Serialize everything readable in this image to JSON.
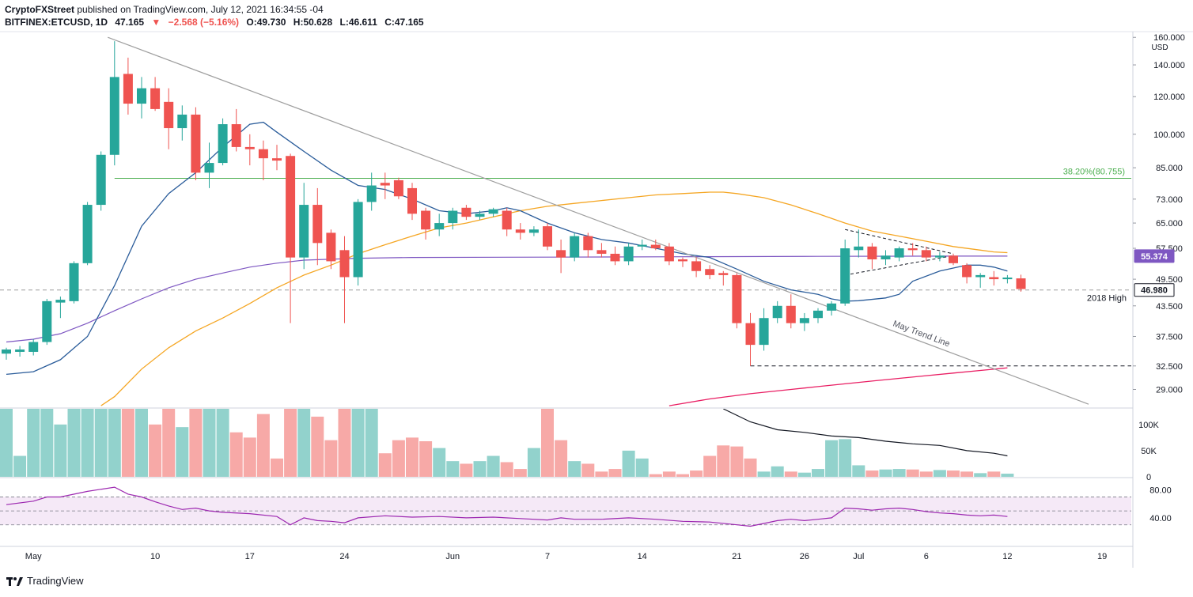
{
  "header": {
    "line1_author": "CryptoFXStreet",
    "line1_rest": "published on TradingView.com, July 12, 2021 16:34:55 -04",
    "symbol": "BITFINEX:ETCUSD, 1D",
    "last": "47.165",
    "arrow": "▼",
    "change": "−2.568 (−5.16%)",
    "o": "O:49.730",
    "h": "H:50.628",
    "l": "L:46.611",
    "c": "C:47.165"
  },
  "footer": {
    "brand": "TradingView"
  },
  "colors": {
    "up": "#26a69a",
    "down": "#ef5350",
    "ema_blue": "#2a5c9a",
    "ema_orange": "#f5a623",
    "ema_purple": "#7e57c2",
    "sma_pink": "#e91e63",
    "trend": "#9e9e9e",
    "fib": "#4caf50",
    "rsi": "#9c27b0"
  },
  "chart_data": {
    "type": "candlestick",
    "title": "BITFINEX:ETCUSD, 1D",
    "y_scale": "log",
    "ylim": [
      26.5,
      162
    ],
    "currency": "USD",
    "price_ticks": [
      29,
      32.5,
      37.5,
      43.5,
      49.5,
      57.5,
      65,
      73,
      85,
      100,
      120,
      140,
      160
    ],
    "x_tick_labels": [
      {
        "label": "May",
        "index": 2
      },
      {
        "label": "10",
        "index": 11
      },
      {
        "label": "17",
        "index": 18
      },
      {
        "label": "24",
        "index": 25
      },
      {
        "label": "Jun",
        "index": 33
      },
      {
        "label": "7",
        "index": 40
      },
      {
        "label": "14",
        "index": 47
      },
      {
        "label": "21",
        "index": 54
      },
      {
        "label": "26",
        "index": 59
      },
      {
        "label": "Jul",
        "index": 63
      },
      {
        "label": "6",
        "index": 68
      },
      {
        "label": "12",
        "index": 74
      },
      {
        "label": "19",
        "index": 81
      }
    ],
    "candles": [
      {
        "o": 34.5,
        "h": 35.5,
        "l": 33.5,
        "c": 35.2
      },
      {
        "o": 34.8,
        "h": 35.8,
        "l": 34.0,
        "c": 35.2
      },
      {
        "o": 34.8,
        "h": 37.0,
        "l": 34.2,
        "c": 36.5
      },
      {
        "o": 36.5,
        "h": 45.0,
        "l": 36.0,
        "c": 44.5
      },
      {
        "o": 44.2,
        "h": 45.5,
        "l": 41.0,
        "c": 44.8
      },
      {
        "o": 44.5,
        "h": 54.0,
        "l": 44.0,
        "c": 53.5
      },
      {
        "o": 53.5,
        "h": 72.0,
        "l": 53.0,
        "c": 71.0
      },
      {
        "o": 71.0,
        "h": 92.0,
        "l": 69.0,
        "c": 90.5
      },
      {
        "o": 90.5,
        "h": 157.0,
        "l": 86.0,
        "c": 132.0
      },
      {
        "o": 134.0,
        "h": 145.0,
        "l": 110.0,
        "c": 116.0
      },
      {
        "o": 116.0,
        "h": 132.0,
        "l": 108.0,
        "c": 125.0
      },
      {
        "o": 125.0,
        "h": 132.0,
        "l": 112.0,
        "c": 113.0
      },
      {
        "o": 117.0,
        "h": 125.0,
        "l": 93.0,
        "c": 103.0
      },
      {
        "o": 103.0,
        "h": 115.0,
        "l": 97.0,
        "c": 110.0
      },
      {
        "o": 110.0,
        "h": 114.0,
        "l": 80.0,
        "c": 83.0
      },
      {
        "o": 83.0,
        "h": 96.0,
        "l": 77.0,
        "c": 87.0
      },
      {
        "o": 87.0,
        "h": 108.0,
        "l": 86.0,
        "c": 105.0
      },
      {
        "o": 105.0,
        "h": 113.0,
        "l": 92.0,
        "c": 94.0
      },
      {
        "o": 94.0,
        "h": 100.0,
        "l": 86.0,
        "c": 93.0
      },
      {
        "o": 93.0,
        "h": 97.0,
        "l": 80.0,
        "c": 89.0
      },
      {
        "o": 89.0,
        "h": 95.0,
        "l": 84.0,
        "c": 88.0
      },
      {
        "o": 90.0,
        "h": 91.0,
        "l": 40.0,
        "c": 55.0
      },
      {
        "o": 55.0,
        "h": 79.0,
        "l": 52.0,
        "c": 71.0
      },
      {
        "o": 71.0,
        "h": 77.0,
        "l": 53.0,
        "c": 59.0
      },
      {
        "o": 62.0,
        "h": 63.0,
        "l": 52.0,
        "c": 54.0
      },
      {
        "o": 57.0,
        "h": 61.0,
        "l": 40.0,
        "c": 50.0
      },
      {
        "o": 50.0,
        "h": 73.0,
        "l": 48.0,
        "c": 72.0
      },
      {
        "o": 72.0,
        "h": 83.0,
        "l": 69.0,
        "c": 78.0
      },
      {
        "o": 79.0,
        "h": 83.0,
        "l": 73.0,
        "c": 78.0
      },
      {
        "o": 80.0,
        "h": 81.0,
        "l": 73.0,
        "c": 74.0
      },
      {
        "o": 77.0,
        "h": 79.0,
        "l": 66.0,
        "c": 68.0
      },
      {
        "o": 69.0,
        "h": 70.0,
        "l": 60.0,
        "c": 63.0
      },
      {
        "o": 63.0,
        "h": 68.0,
        "l": 61.0,
        "c": 65.0
      },
      {
        "o": 65.0,
        "h": 70.0,
        "l": 63.0,
        "c": 69.0
      },
      {
        "o": 70.0,
        "h": 71.0,
        "l": 66.0,
        "c": 67.0
      },
      {
        "o": 67.0,
        "h": 69.0,
        "l": 66.0,
        "c": 68.0
      },
      {
        "o": 68.0,
        "h": 70.0,
        "l": 67.0,
        "c": 69.5
      },
      {
        "o": 69.0,
        "h": 70.0,
        "l": 61.0,
        "c": 63.0
      },
      {
        "o": 63.0,
        "h": 65.0,
        "l": 60.0,
        "c": 62.0
      },
      {
        "o": 62.0,
        "h": 64.0,
        "l": 61.0,
        "c": 63.0
      },
      {
        "o": 64.0,
        "h": 65.0,
        "l": 57.0,
        "c": 58.0
      },
      {
        "o": 57.0,
        "h": 60.0,
        "l": 51.0,
        "c": 55.0
      },
      {
        "o": 55.0,
        "h": 62.0,
        "l": 54.0,
        "c": 61.0
      },
      {
        "o": 61.0,
        "h": 62.0,
        "l": 55.0,
        "c": 57.0
      },
      {
        "o": 57.0,
        "h": 59.0,
        "l": 55.0,
        "c": 56.0
      },
      {
        "o": 56.0,
        "h": 58.0,
        "l": 53.0,
        "c": 54.0
      },
      {
        "o": 54.0,
        "h": 59.0,
        "l": 53.0,
        "c": 58.0
      },
      {
        "o": 58.0,
        "h": 60.0,
        "l": 57.0,
        "c": 58.5
      },
      {
        "o": 58.5,
        "h": 60.0,
        "l": 57.0,
        "c": 57.5
      },
      {
        "o": 58.0,
        "h": 59.0,
        "l": 53.0,
        "c": 54.0
      },
      {
        "o": 54.5,
        "h": 55.0,
        "l": 52.5,
        "c": 54.0
      },
      {
        "o": 54.0,
        "h": 55.0,
        "l": 50.0,
        "c": 51.5
      },
      {
        "o": 52.0,
        "h": 53.0,
        "l": 49.5,
        "c": 50.5
      },
      {
        "o": 51.0,
        "h": 51.5,
        "l": 48.0,
        "c": 50.5
      },
      {
        "o": 50.5,
        "h": 51.0,
        "l": 39.0,
        "c": 40.0
      },
      {
        "o": 40.0,
        "h": 42.0,
        "l": 32.5,
        "c": 36.0
      },
      {
        "o": 36.0,
        "h": 43.0,
        "l": 35.0,
        "c": 41.0
      },
      {
        "o": 41.0,
        "h": 44.5,
        "l": 40.0,
        "c": 43.5
      },
      {
        "o": 43.5,
        "h": 46.0,
        "l": 39.0,
        "c": 40.0
      },
      {
        "o": 40.0,
        "h": 42.0,
        "l": 38.5,
        "c": 41.0
      },
      {
        "o": 41.0,
        "h": 43.0,
        "l": 40.0,
        "c": 42.5
      },
      {
        "o": 42.5,
        "h": 44.5,
        "l": 41.5,
        "c": 44.0
      },
      {
        "o": 44.0,
        "h": 60.0,
        "l": 43.5,
        "c": 57.5
      },
      {
        "o": 57.0,
        "h": 63.0,
        "l": 55.0,
        "c": 58.0
      },
      {
        "o": 58.0,
        "h": 59.0,
        "l": 52.0,
        "c": 54.5
      },
      {
        "o": 54.5,
        "h": 57.0,
        "l": 53.0,
        "c": 55.5
      },
      {
        "o": 55.0,
        "h": 58.0,
        "l": 54.0,
        "c": 57.5
      },
      {
        "o": 57.5,
        "h": 59.0,
        "l": 55.5,
        "c": 57.0
      },
      {
        "o": 57.0,
        "h": 58.0,
        "l": 54.0,
        "c": 55.0
      },
      {
        "o": 55.0,
        "h": 56.5,
        "l": 54.0,
        "c": 55.5
      },
      {
        "o": 55.5,
        "h": 56.0,
        "l": 53.0,
        "c": 53.5
      },
      {
        "o": 53.0,
        "h": 53.5,
        "l": 48.5,
        "c": 50.0
      },
      {
        "o": 50.0,
        "h": 51.0,
        "l": 47.5,
        "c": 50.5
      },
      {
        "o": 50.0,
        "h": 51.5,
        "l": 48.0,
        "c": 49.5
      },
      {
        "o": 49.5,
        "h": 50.5,
        "l": 48.5,
        "c": 49.9
      },
      {
        "o": 49.7,
        "h": 50.6,
        "l": 46.6,
        "c": 47.2
      }
    ],
    "ema_blue": [
      [
        0,
        31.2
      ],
      [
        2,
        31.6
      ],
      [
        4,
        33.5
      ],
      [
        6,
        37.5
      ],
      [
        8,
        48
      ],
      [
        10,
        64
      ],
      [
        12,
        75
      ],
      [
        14,
        83
      ],
      [
        16,
        94
      ],
      [
        18,
        105
      ],
      [
        19,
        106
      ],
      [
        20,
        101
      ],
      [
        22,
        92
      ],
      [
        24,
        84
      ],
      [
        26,
        78
      ],
      [
        28,
        76.5
      ],
      [
        30,
        73
      ],
      [
        32,
        69
      ],
      [
        34,
        68
      ],
      [
        36,
        69
      ],
      [
        37,
        70
      ],
      [
        38,
        69
      ],
      [
        40,
        65
      ],
      [
        42,
        62
      ],
      [
        44,
        60
      ],
      [
        46,
        59
      ],
      [
        48,
        57.5
      ],
      [
        50,
        56
      ],
      [
        52,
        55
      ],
      [
        54,
        52
      ],
      [
        56,
        49
      ],
      [
        58,
        47
      ],
      [
        60,
        46
      ],
      [
        61,
        45
      ],
      [
        62,
        44.5
      ],
      [
        63,
        44.6
      ],
      [
        65,
        45.2
      ],
      [
        66,
        46
      ],
      [
        67,
        49
      ],
      [
        69,
        51.5
      ],
      [
        71,
        53
      ],
      [
        72,
        53
      ],
      [
        73,
        52.5
      ],
      [
        74,
        51.5
      ]
    ],
    "ema_orange": [
      [
        7,
        26.8
      ],
      [
        8,
        28
      ],
      [
        10,
        32
      ],
      [
        12,
        35.5
      ],
      [
        14,
        38.5
      ],
      [
        16,
        41
      ],
      [
        18,
        44
      ],
      [
        20,
        47.5
      ],
      [
        22,
        50.5
      ],
      [
        24,
        53
      ],
      [
        26,
        56
      ],
      [
        28,
        58.5
      ],
      [
        30,
        61
      ],
      [
        32,
        63.5
      ],
      [
        34,
        65
      ],
      [
        36,
        67
      ],
      [
        38,
        69
      ],
      [
        40,
        70.5
      ],
      [
        42,
        71.5
      ],
      [
        44,
        72.5
      ],
      [
        46,
        73.5
      ],
      [
        48,
        74.5
      ],
      [
        50,
        75
      ],
      [
        52,
        75.5
      ],
      [
        53,
        75.5
      ],
      [
        54,
        75
      ],
      [
        56,
        73.5
      ],
      [
        58,
        71
      ],
      [
        60,
        68
      ],
      [
        62,
        65
      ],
      [
        64,
        62.5
      ],
      [
        66,
        61
      ],
      [
        68,
        59.5
      ],
      [
        70,
        58
      ],
      [
        72,
        57
      ],
      [
        73,
        56.5
      ],
      [
        74,
        56.3
      ]
    ],
    "ema_purple": [
      [
        0,
        36.5
      ],
      [
        2,
        37
      ],
      [
        4,
        38
      ],
      [
        6,
        40
      ],
      [
        8,
        42.5
      ],
      [
        10,
        45
      ],
      [
        12,
        47.5
      ],
      [
        14,
        49.5
      ],
      [
        16,
        51
      ],
      [
        18,
        52.5
      ],
      [
        20,
        53.5
      ],
      [
        22,
        54.3
      ],
      [
        26,
        54.8
      ],
      [
        30,
        55
      ],
      [
        40,
        55.1
      ],
      [
        50,
        55.2
      ],
      [
        60,
        55.3
      ],
      [
        70,
        55.37
      ],
      [
        74,
        55.37
      ]
    ],
    "sma_pink": [
      [
        49,
        26.8
      ],
      [
        52,
        27.7
      ],
      [
        55,
        28.4
      ],
      [
        58,
        29
      ],
      [
        60,
        29.4
      ],
      [
        62,
        29.8
      ],
      [
        64,
        30.2
      ],
      [
        66,
        30.6
      ],
      [
        68,
        31
      ],
      [
        70,
        31.4
      ],
      [
        72,
        31.8
      ],
      [
        74,
        32.2
      ]
    ],
    "trend_line": {
      "from": [
        7.5,
        160
      ],
      "to": [
        80,
        27
      ],
      "label": "May Trend Line"
    },
    "fib_level": {
      "value": 80.755,
      "label": "38.20%(80.755)"
    },
    "support_2018": {
      "value": 46.98,
      "label": "2018 High"
    },
    "support_dashed": 32.5,
    "pennant_upper": {
      "from": [
        62,
        63
      ],
      "to": [
        70,
        56
      ]
    },
    "pennant_lower": {
      "from": [
        62,
        50.5
      ],
      "to": [
        70,
        55.5
      ]
    },
    "price_tags": [
      {
        "value": 55.374,
        "label": "55.374",
        "color": "#7e57c2"
      },
      {
        "value": 46.98,
        "label": "46.980",
        "color": "#ffffff"
      }
    ],
    "volume": {
      "ticks": [
        "100K",
        "50K",
        "0"
      ],
      "ymax": 130000,
      "values": [
        180,
        40,
        180,
        180,
        100,
        180,
        180,
        180,
        180,
        180,
        180,
        100,
        180,
        95,
        180,
        180,
        180,
        85,
        75,
        120,
        35,
        180,
        180,
        115,
        70,
        180,
        180,
        180,
        45,
        70,
        75,
        68,
        55,
        30,
        25,
        30,
        40,
        28,
        15,
        55,
        180,
        70,
        30,
        25,
        10,
        15,
        50,
        35,
        5,
        10,
        5,
        12,
        40,
        60,
        58,
        35,
        10,
        20,
        10,
        8,
        15,
        70,
        72,
        22,
        12,
        14,
        15,
        14,
        10,
        13,
        12,
        10,
        7,
        10,
        6
      ],
      "avg": [
        [
          53,
          130
        ],
        [
          55,
          105
        ],
        [
          57,
          90
        ],
        [
          59,
          85
        ],
        [
          61,
          78
        ],
        [
          63,
          75
        ],
        [
          65,
          68
        ],
        [
          67,
          63
        ],
        [
          69,
          60
        ],
        [
          71,
          50
        ],
        [
          73,
          45
        ],
        [
          74,
          40
        ]
      ]
    },
    "rsi": {
      "ticks": [
        "80.00",
        "40.00"
      ],
      "band": [
        30,
        70
      ],
      "values": [
        [
          0,
          59
        ],
        [
          2,
          64
        ],
        [
          3,
          70
        ],
        [
          4,
          70
        ],
        [
          6,
          78
        ],
        [
          8,
          84
        ],
        [
          9,
          74
        ],
        [
          10,
          70
        ],
        [
          11,
          63
        ],
        [
          12,
          57
        ],
        [
          13,
          52
        ],
        [
          14,
          54
        ],
        [
          15,
          50
        ],
        [
          16,
          48
        ],
        [
          18,
          46
        ],
        [
          20,
          42
        ],
        [
          21,
          30
        ],
        [
          22,
          40
        ],
        [
          23,
          36
        ],
        [
          24,
          35
        ],
        [
          25,
          33
        ],
        [
          26,
          40
        ],
        [
          28,
          43
        ],
        [
          30,
          41
        ],
        [
          32,
          42
        ],
        [
          34,
          40
        ],
        [
          36,
          41
        ],
        [
          38,
          39
        ],
        [
          40,
          37
        ],
        [
          41,
          40
        ],
        [
          42,
          38
        ],
        [
          44,
          38
        ],
        [
          46,
          40
        ],
        [
          48,
          38
        ],
        [
          50,
          35
        ],
        [
          52,
          34
        ],
        [
          54,
          30
        ],
        [
          55,
          28
        ],
        [
          56,
          32
        ],
        [
          57,
          36
        ],
        [
          58,
          38
        ],
        [
          59,
          36
        ],
        [
          60,
          38
        ],
        [
          61,
          40
        ],
        [
          62,
          54
        ],
        [
          63,
          53
        ],
        [
          64,
          51
        ],
        [
          65,
          53
        ],
        [
          66,
          54
        ],
        [
          67,
          52
        ],
        [
          68,
          49
        ],
        [
          69,
          47
        ],
        [
          70,
          46
        ],
        [
          71,
          44
        ],
        [
          72,
          43
        ],
        [
          73,
          44
        ],
        [
          74,
          42
        ]
      ]
    }
  }
}
